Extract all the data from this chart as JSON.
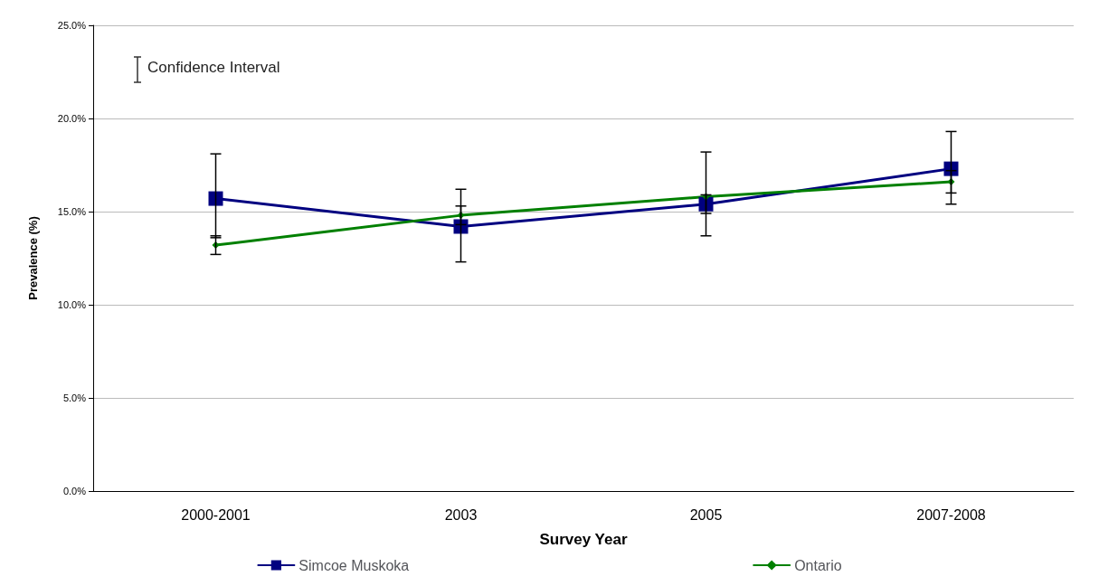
{
  "chart_data": {
    "type": "line",
    "xlabel": "Survey Year",
    "ylabel": "Prevalence (%)",
    "annotations": [
      "Confidence Interval"
    ],
    "categories": [
      "2000-2001",
      "2003",
      "2005",
      "2007-2008"
    ],
    "series": [
      {
        "name": "Simcoe Muskoka",
        "color": "#000080",
        "marker": "square",
        "values": [
          15.7,
          14.2,
          15.4,
          17.3
        ],
        "errors": [
          [
            13.6,
            18.1
          ],
          [
            12.3,
            16.2
          ],
          [
            13.7,
            18.2
          ],
          [
            15.4,
            19.3
          ]
        ]
      },
      {
        "name": "Ontario",
        "color": "#008000",
        "marker": "diamond",
        "values": [
          13.2,
          14.8,
          15.8,
          16.6
        ],
        "errors": [
          [
            12.7,
            13.7
          ],
          [
            14.3,
            15.3
          ],
          [
            14.9,
            15.9
          ],
          [
            16.0,
            17.2
          ]
        ]
      }
    ],
    "ylim": [
      0,
      25
    ],
    "yticks": [
      {
        "value": 0,
        "label": "0.0%"
      },
      {
        "value": 5,
        "label": "5.0%"
      },
      {
        "value": 10,
        "label": "10.0%"
      },
      {
        "value": 15,
        "label": "15.0%"
      },
      {
        "value": 20,
        "label": "20.0%"
      },
      {
        "value": 25,
        "label": "25.0%"
      }
    ],
    "grid": "y",
    "legend": "bottom",
    "line_style": "solid"
  }
}
